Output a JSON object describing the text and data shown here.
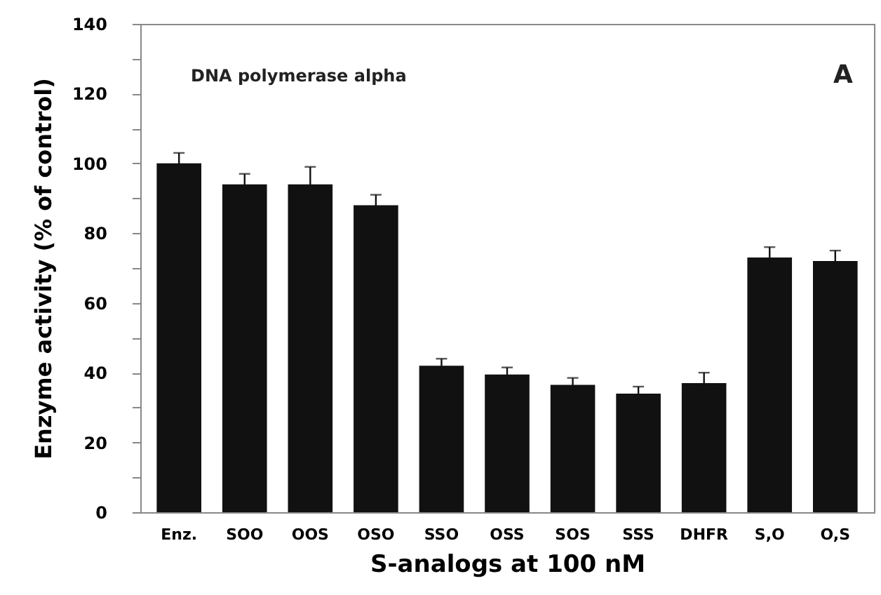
{
  "chart_data": {
    "type": "bar",
    "xlabel": "S-analogs at 100 nM",
    "ylabel": "Enzyme activity (% of control)",
    "annotations": [
      "DNA polymerase alpha",
      "A"
    ],
    "categories": [
      "Enz.",
      "SOO",
      "OOS",
      "OSO",
      "SSO",
      "OSS",
      "SOS",
      "SSS",
      "DHFR",
      "S,O",
      "O,S"
    ],
    "values": [
      100,
      94,
      94,
      88,
      42,
      39.5,
      36.5,
      34,
      37,
      73,
      72
    ],
    "errors": [
      3,
      3,
      5,
      3,
      2,
      2,
      2,
      2,
      3,
      3,
      3
    ],
    "color": "#111111",
    "ylim": [
      0,
      140
    ],
    "yticks": [
      0,
      {
        "value": 10,
        "label": null
      },
      20,
      {
        "value": 30,
        "label": null
      },
      40,
      {
        "value": 50,
        "label": null
      },
      60,
      {
        "value": 70,
        "label": null
      },
      80,
      {
        "value": 90,
        "label": null
      },
      100,
      {
        "value": 110,
        "label": null
      },
      120,
      {
        "value": 130,
        "label": null
      },
      140
    ],
    "grid": false
  }
}
